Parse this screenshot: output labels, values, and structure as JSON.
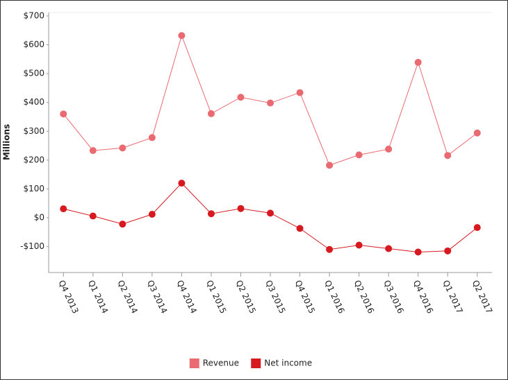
{
  "chart_data": {
    "type": "line",
    "y_label": "Millions",
    "categories": [
      "Q4 2013",
      "Q1 2014",
      "Q2 2014",
      "Q3 2014",
      "Q4 2014",
      "Q1 2015",
      "Q2 2015",
      "Q3 2015",
      "Q4 2015",
      "Q1 2016",
      "Q2 2016",
      "Q3 2016",
      "Q4 2016",
      "Q1 2017",
      "Q2 2017"
    ],
    "series": [
      {
        "name": "Revenue",
        "color": "#ea6a72",
        "values": [
          360,
          233,
          242,
          278,
          632,
          361,
          418,
          398,
          434,
          182,
          218,
          238,
          539,
          216,
          294
        ]
      },
      {
        "name": "Net income",
        "color": "#d71920",
        "values": [
          31,
          6,
          -22,
          12,
          120,
          14,
          32,
          16,
          -37,
          -110,
          -95,
          -107,
          -119,
          -115,
          -34
        ]
      }
    ],
    "ylim": [
      -190,
      712
    ],
    "yticks": [
      {
        "value": -100,
        "label": "-$100"
      },
      {
        "value": 0,
        "label": "$0"
      },
      {
        "value": 100,
        "label": "$100"
      },
      {
        "value": 200,
        "label": "$200"
      },
      {
        "value": 300,
        "label": "$300"
      },
      {
        "value": 400,
        "label": "$400"
      },
      {
        "value": 500,
        "label": "$500"
      },
      {
        "value": 600,
        "label": "$600"
      },
      {
        "value": 700,
        "label": "$700"
      }
    ],
    "legend": "bottom"
  }
}
